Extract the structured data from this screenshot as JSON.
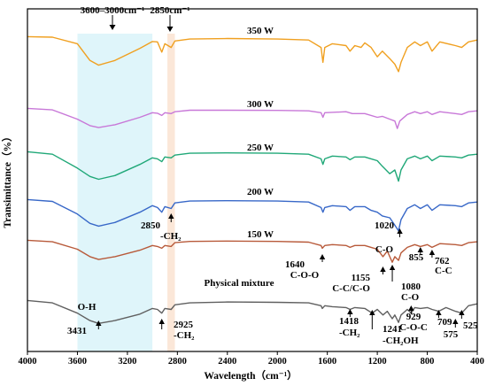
{
  "chart_data": {
    "type": "line",
    "title": "",
    "xlabel": "Wavelength（cm⁻¹）",
    "ylabel": "Transimittance（%）",
    "xlim": [
      4000,
      400
    ],
    "x_reversed": true,
    "x_ticks": [
      4000,
      3600,
      3200,
      2800,
      2400,
      2000,
      1600,
      1200,
      800,
      400
    ],
    "y_ticks_shown": false,
    "grid": false,
    "legend": "none",
    "bands": [
      {
        "label": "3600–3000cm⁻¹",
        "x_from": 3600,
        "x_to": 3000,
        "color": "#dff5fa"
      },
      {
        "label": "2850cm⁻¹",
        "x_from": 2880,
        "x_to": 2820,
        "color": "#fbe7d8"
      }
    ],
    "series": [
      {
        "name": "350 W",
        "color": "#f0a020",
        "baseline": 0.2,
        "points": [
          [
            4000,
            0.2
          ],
          [
            3800,
            0.5
          ],
          [
            3600,
            4
          ],
          [
            3500,
            13
          ],
          [
            3430,
            15.5
          ],
          [
            3300,
            13
          ],
          [
            3100,
            6.5
          ],
          [
            3000,
            2.8
          ],
          [
            2960,
            3
          ],
          [
            2925,
            8.5
          ],
          [
            2900,
            4
          ],
          [
            2850,
            6
          ],
          [
            2820,
            2.5
          ],
          [
            2700,
            1.5
          ],
          [
            2400,
            1.2
          ],
          [
            2000,
            1.5
          ],
          [
            1750,
            2
          ],
          [
            1650,
            6
          ],
          [
            1635,
            14
          ],
          [
            1620,
            6
          ],
          [
            1560,
            4
          ],
          [
            1450,
            5
          ],
          [
            1418,
            8
          ],
          [
            1380,
            5
          ],
          [
            1330,
            6
          ],
          [
            1300,
            3.5
          ],
          [
            1250,
            6
          ],
          [
            1200,
            11
          ],
          [
            1160,
            8
          ],
          [
            1100,
            12
          ],
          [
            1060,
            15
          ],
          [
            1030,
            19
          ],
          [
            1010,
            14
          ],
          [
            960,
            6
          ],
          [
            900,
            3
          ],
          [
            855,
            5
          ],
          [
            800,
            3
          ],
          [
            762,
            8
          ],
          [
            700,
            3
          ],
          [
            575,
            5
          ],
          [
            525,
            6
          ],
          [
            470,
            3
          ],
          [
            400,
            2
          ]
        ]
      },
      {
        "name": "300 W",
        "color": "#c878d8",
        "baseline": 0.2,
        "points": [
          [
            4000,
            0.2
          ],
          [
            3800,
            1
          ],
          [
            3600,
            6
          ],
          [
            3500,
            9.5
          ],
          [
            3430,
            10.5
          ],
          [
            3300,
            9
          ],
          [
            3100,
            5
          ],
          [
            3000,
            2.5
          ],
          [
            2960,
            2.8
          ],
          [
            2925,
            4
          ],
          [
            2900,
            2.5
          ],
          [
            2850,
            3
          ],
          [
            2820,
            2
          ],
          [
            2700,
            1.2
          ],
          [
            2400,
            1.2
          ],
          [
            2000,
            1.3
          ],
          [
            1750,
            1.5
          ],
          [
            1650,
            2.5
          ],
          [
            1635,
            5
          ],
          [
            1620,
            2.5
          ],
          [
            1450,
            2
          ],
          [
            1400,
            3
          ],
          [
            1300,
            3
          ],
          [
            1200,
            5
          ],
          [
            1160,
            4.5
          ],
          [
            1100,
            6
          ],
          [
            1060,
            7
          ],
          [
            1040,
            11
          ],
          [
            1020,
            7
          ],
          [
            960,
            3.5
          ],
          [
            900,
            2
          ],
          [
            855,
            3
          ],
          [
            800,
            2
          ],
          [
            762,
            3.5
          ],
          [
            700,
            2
          ],
          [
            575,
            3
          ],
          [
            525,
            3.5
          ],
          [
            470,
            2
          ],
          [
            400,
            1.5
          ]
        ]
      },
      {
        "name": "250 W",
        "color": "#20a878",
        "baseline": 0.2,
        "points": [
          [
            4000,
            0.2
          ],
          [
            3800,
            1.5
          ],
          [
            3600,
            9
          ],
          [
            3500,
            13.5
          ],
          [
            3430,
            15
          ],
          [
            3300,
            13
          ],
          [
            3100,
            7
          ],
          [
            3000,
            3.5
          ],
          [
            2960,
            4
          ],
          [
            2925,
            5.5
          ],
          [
            2900,
            3
          ],
          [
            2850,
            3.5
          ],
          [
            2820,
            2
          ],
          [
            2700,
            1
          ],
          [
            2400,
            0.8
          ],
          [
            2000,
            1
          ],
          [
            1750,
            1.5
          ],
          [
            1650,
            4
          ],
          [
            1635,
            7
          ],
          [
            1620,
            4
          ],
          [
            1560,
            2.5
          ],
          [
            1450,
            3
          ],
          [
            1418,
            4.5
          ],
          [
            1380,
            3
          ],
          [
            1300,
            3
          ],
          [
            1250,
            4
          ],
          [
            1200,
            5
          ],
          [
            1160,
            8
          ],
          [
            1100,
            12
          ],
          [
            1060,
            10
          ],
          [
            1030,
            16
          ],
          [
            1010,
            10
          ],
          [
            960,
            4
          ],
          [
            900,
            2.5
          ],
          [
            855,
            4
          ],
          [
            800,
            2.5
          ],
          [
            762,
            5
          ],
          [
            700,
            2.5
          ],
          [
            575,
            3
          ],
          [
            525,
            3.5
          ],
          [
            470,
            2
          ],
          [
            400,
            1.5
          ]
        ]
      },
      {
        "name": "200 W",
        "color": "#3868c8",
        "baseline": 0.2,
        "points": [
          [
            4000,
            0.2
          ],
          [
            3800,
            1.2
          ],
          [
            3600,
            8
          ],
          [
            3500,
            13
          ],
          [
            3430,
            14.5
          ],
          [
            3300,
            12.5
          ],
          [
            3100,
            7
          ],
          [
            3000,
            3.5
          ],
          [
            2960,
            4.5
          ],
          [
            2925,
            7
          ],
          [
            2900,
            4
          ],
          [
            2850,
            5
          ],
          [
            2820,
            2
          ],
          [
            2700,
            1
          ],
          [
            2400,
            0.8
          ],
          [
            2000,
            1
          ],
          [
            1750,
            1.5
          ],
          [
            1650,
            4.5
          ],
          [
            1635,
            7
          ],
          [
            1620,
            4.5
          ],
          [
            1560,
            3.5
          ],
          [
            1450,
            4
          ],
          [
            1418,
            6
          ],
          [
            1380,
            4
          ],
          [
            1300,
            4
          ],
          [
            1250,
            6
          ],
          [
            1200,
            7
          ],
          [
            1160,
            9
          ],
          [
            1100,
            10
          ],
          [
            1060,
            14
          ],
          [
            1030,
            17
          ],
          [
            1010,
            11
          ],
          [
            960,
            5
          ],
          [
            900,
            3
          ],
          [
            855,
            5
          ],
          [
            800,
            3
          ],
          [
            762,
            6
          ],
          [
            700,
            3
          ],
          [
            575,
            3.5
          ],
          [
            525,
            4
          ],
          [
            470,
            2
          ],
          [
            400,
            1.5
          ]
        ]
      },
      {
        "name": "150 W",
        "color": "#b85a3a",
        "baseline": 0.2,
        "points": [
          [
            4000,
            0.2
          ],
          [
            3800,
            1
          ],
          [
            3600,
            5
          ],
          [
            3500,
            9
          ],
          [
            3430,
            10.5
          ],
          [
            3300,
            9
          ],
          [
            3100,
            5.5
          ],
          [
            3000,
            3
          ],
          [
            2960,
            3.5
          ],
          [
            2925,
            4.5
          ],
          [
            2900,
            3
          ],
          [
            2850,
            3.5
          ],
          [
            2820,
            1.5
          ],
          [
            2700,
            0.8
          ],
          [
            2400,
            0.6
          ],
          [
            2000,
            0.8
          ],
          [
            1750,
            1.2
          ],
          [
            1650,
            3
          ],
          [
            1640,
            4.5
          ],
          [
            1620,
            3
          ],
          [
            1560,
            2.5
          ],
          [
            1450,
            3
          ],
          [
            1418,
            4
          ],
          [
            1380,
            3
          ],
          [
            1300,
            3
          ],
          [
            1250,
            4
          ],
          [
            1200,
            5
          ],
          [
            1155,
            9
          ],
          [
            1120,
            6
          ],
          [
            1080,
            12
          ],
          [
            1060,
            9
          ],
          [
            1030,
            11
          ],
          [
            1010,
            7
          ],
          [
            960,
            4
          ],
          [
            900,
            2.5
          ],
          [
            855,
            3.5
          ],
          [
            800,
            2.5
          ],
          [
            762,
            4
          ],
          [
            700,
            2
          ],
          [
            575,
            2.5
          ],
          [
            525,
            3
          ],
          [
            470,
            1.5
          ],
          [
            400,
            1
          ]
        ]
      },
      {
        "name": "Physical mixture",
        "color": "#606060",
        "baseline": 0.2,
        "points": [
          [
            4000,
            0.2
          ],
          [
            3800,
            1.5
          ],
          [
            3600,
            7
          ],
          [
            3500,
            11
          ],
          [
            3431,
            12.5
          ],
          [
            3300,
            11
          ],
          [
            3100,
            7.5
          ],
          [
            3000,
            4.5
          ],
          [
            2960,
            5
          ],
          [
            2925,
            7
          ],
          [
            2900,
            4.5
          ],
          [
            2850,
            5
          ],
          [
            2820,
            2.5
          ],
          [
            2700,
            1.5
          ],
          [
            2400,
            1
          ],
          [
            2000,
            1.2
          ],
          [
            1750,
            1.5
          ],
          [
            1650,
            3
          ],
          [
            1640,
            4.5
          ],
          [
            1620,
            3
          ],
          [
            1560,
            3.5
          ],
          [
            1450,
            4
          ],
          [
            1418,
            5
          ],
          [
            1380,
            4
          ],
          [
            1300,
            4.5
          ],
          [
            1241,
            7
          ],
          [
            1200,
            5
          ],
          [
            1155,
            8
          ],
          [
            1120,
            6
          ],
          [
            1080,
            10
          ],
          [
            1060,
            8
          ],
          [
            1030,
            12
          ],
          [
            1010,
            8
          ],
          [
            960,
            5
          ],
          [
            929,
            7
          ],
          [
            900,
            4
          ],
          [
            855,
            4.5
          ],
          [
            800,
            4
          ],
          [
            762,
            5
          ],
          [
            709,
            6
          ],
          [
            650,
            4
          ],
          [
            575,
            6
          ],
          [
            525,
            7
          ],
          [
            470,
            3
          ],
          [
            400,
            2
          ]
        ]
      }
    ],
    "annotations": [
      {
        "text": "3431",
        "x": 3431,
        "series": "Physical mixture"
      },
      {
        "text": "O-H",
        "x": 3431,
        "series": "Physical mixture"
      },
      {
        "text": "2925",
        "x": 2925,
        "series": "Physical mixture"
      },
      {
        "text": "-CH₂",
        "x": 2925,
        "series": "Physical mixture"
      },
      {
        "text": "2850",
        "x": 2850,
        "series": "200 W"
      },
      {
        "text": "-CH₂",
        "x": 2850,
        "series": "200 W"
      },
      {
        "text": "1640",
        "x": 1640,
        "series": "150 W"
      },
      {
        "text": "C-O-O",
        "x": 1640,
        "series": "150 W"
      },
      {
        "text": "1418",
        "x": 1418,
        "series": "Physical mixture"
      },
      {
        "text": "-CH₂",
        "x": 1418,
        "series": "Physical mixture"
      },
      {
        "text": "1241",
        "x": 1241,
        "series": "Physical mixture"
      },
      {
        "text": "-CH₂OH",
        "x": 1241,
        "series": "Physical mixture"
      },
      {
        "text": "1155",
        "x": 1155,
        "series": "150 W"
      },
      {
        "text": "C-C/C-O",
        "x": 1155,
        "series": "150 W"
      },
      {
        "text": "1080",
        "x": 1080,
        "series": "150 W"
      },
      {
        "text": "C-O",
        "x": 1080,
        "series": "150 W"
      },
      {
        "text": "1020",
        "x": 1020,
        "series": "200 W"
      },
      {
        "text": "C-O",
        "x": 1020,
        "series": "200 W"
      },
      {
        "text": "929",
        "x": 929,
        "series": "Physical mixture"
      },
      {
        "text": "C-O-C",
        "x": 929,
        "series": "Physical mixture"
      },
      {
        "text": "855",
        "x": 855,
        "series": "150 W"
      },
      {
        "text": "762",
        "x": 762,
        "series": "150 W"
      },
      {
        "text": "C-C",
        "x": 762,
        "series": "150 W"
      },
      {
        "text": "709",
        "x": 709,
        "series": "Physical mixture"
      },
      {
        "text": "575",
        "x": 575,
        "series": "Physical mixture"
      },
      {
        "text": "525",
        "x": 525,
        "series": "Physical mixture"
      }
    ]
  }
}
